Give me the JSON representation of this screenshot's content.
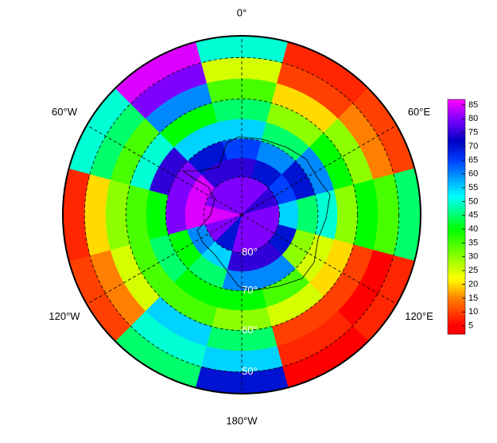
{
  "chart_data": {
    "type": "polar_heatmap",
    "lat_edges": [
      90,
      80,
      75,
      70,
      65,
      60,
      55,
      50,
      45
    ],
    "lon_centers": [
      0,
      30,
      60,
      90,
      120,
      150,
      180,
      210,
      240,
      270,
      300,
      330
    ],
    "values": [
      [
        80,
        75,
        65,
        55,
        45,
        35,
        25,
        50
      ],
      [
        80,
        70,
        60,
        45,
        30,
        20,
        10,
        8
      ],
      [
        75,
        65,
        70,
        60,
        40,
        30,
        15,
        10
      ],
      [
        80,
        55,
        45,
        50,
        30,
        40,
        35,
        45
      ],
      [
        80,
        70,
        30,
        25,
        20,
        10,
        5,
        8
      ],
      [
        80,
        75,
        60,
        35,
        25,
        10,
        8,
        5
      ],
      [
        80,
        75,
        60,
        40,
        30,
        45,
        55,
        70
      ],
      [
        70,
        55,
        45,
        40,
        35,
        55,
        50,
        45
      ],
      [
        80,
        60,
        40,
        45,
        35,
        25,
        15,
        10
      ],
      [
        85,
        85,
        80,
        40,
        35,
        30,
        20,
        8
      ],
      [
        80,
        85,
        80,
        75,
        50,
        35,
        45,
        50
      ],
      [
        80,
        75,
        70,
        55,
        40,
        60,
        80,
        85
      ]
    ],
    "colormap": [
      [
        5,
        "#ff0000"
      ],
      [
        15,
        "#ff8000"
      ],
      [
        22,
        "#ffff00"
      ],
      [
        40,
        "#00ff00"
      ],
      [
        52,
        "#00ffff"
      ],
      [
        65,
        "#0040ff"
      ],
      [
        72,
        "#0000c0"
      ],
      [
        80,
        "#8000ff"
      ],
      [
        87,
        "#ff00ff"
      ]
    ],
    "zlim": [
      2,
      87
    ],
    "zticks": [
      5,
      10,
      15,
      20,
      25,
      30,
      35,
      40,
      45,
      50,
      55,
      60,
      65,
      70,
      75,
      80,
      85
    ],
    "lat_circles": [
      {
        "value": 80,
        "label": "80°"
      },
      {
        "value": 70,
        "label": "70°"
      },
      {
        "value": 60,
        "label": "60°"
      },
      {
        "value": 50,
        "label": "50°"
      }
    ],
    "meridians": [
      {
        "value": 0,
        "label": "0°"
      },
      {
        "value": 60,
        "label": "60°E"
      },
      {
        "value": 120,
        "label": "120°E"
      },
      {
        "value": 180,
        "label": "180°W"
      },
      {
        "value": 240,
        "label": "120°W"
      },
      {
        "value": 300,
        "label": "60°W"
      }
    ]
  }
}
